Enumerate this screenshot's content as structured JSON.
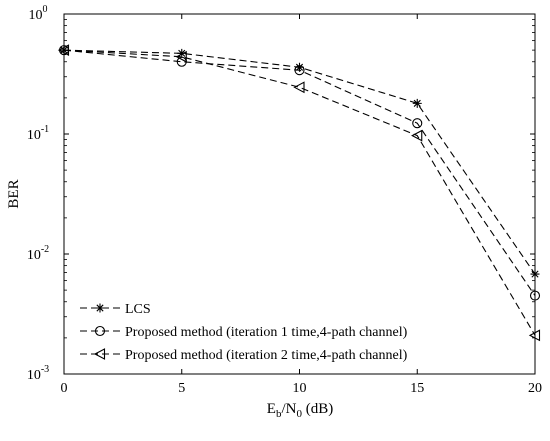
{
  "chart_data": {
    "type": "line",
    "xlabel": "E",
    "xlabel_sub_b": "b",
    "xlabel_mid": "/N",
    "xlabel_sub_0": "0",
    "xlabel_unit": " (dB)",
    "ylabel": "BER",
    "xlim": [
      0,
      20
    ],
    "ylim": [
      0.001,
      1
    ],
    "yscale": "log",
    "grid": false,
    "legend_position": "bottom-left",
    "x_ticks": [
      0,
      5,
      10,
      15,
      20
    ],
    "x_tick_labels": [
      "0",
      "5",
      "10",
      "15",
      "20"
    ],
    "y_ticks": [
      1,
      0.1,
      0.01,
      0.001
    ],
    "y_tick_base": "10",
    "y_tick_exponents": [
      "0",
      "-1",
      "-2",
      "-3"
    ],
    "line_color": "#000000",
    "line_style": "dashed",
    "series": [
      {
        "name": "LCS",
        "marker": "asterisk",
        "x": [
          0,
          5,
          10,
          15,
          20
        ],
        "y": [
          0.5,
          0.47,
          0.36,
          0.18,
          0.0068
        ]
      },
      {
        "name": "Proposed method (iteration 1 time,4-path channel)",
        "marker": "circle",
        "x": [
          0,
          5,
          10,
          15,
          20
        ],
        "y": [
          0.5,
          0.4,
          0.34,
          0.123,
          0.0045
        ]
      },
      {
        "name": "Proposed method (iteration 2 time,4-path channel)",
        "marker": "triangle-left",
        "x": [
          0,
          5,
          10,
          15,
          20
        ],
        "y": [
          0.5,
          0.44,
          0.245,
          0.097,
          0.0021
        ]
      }
    ]
  }
}
